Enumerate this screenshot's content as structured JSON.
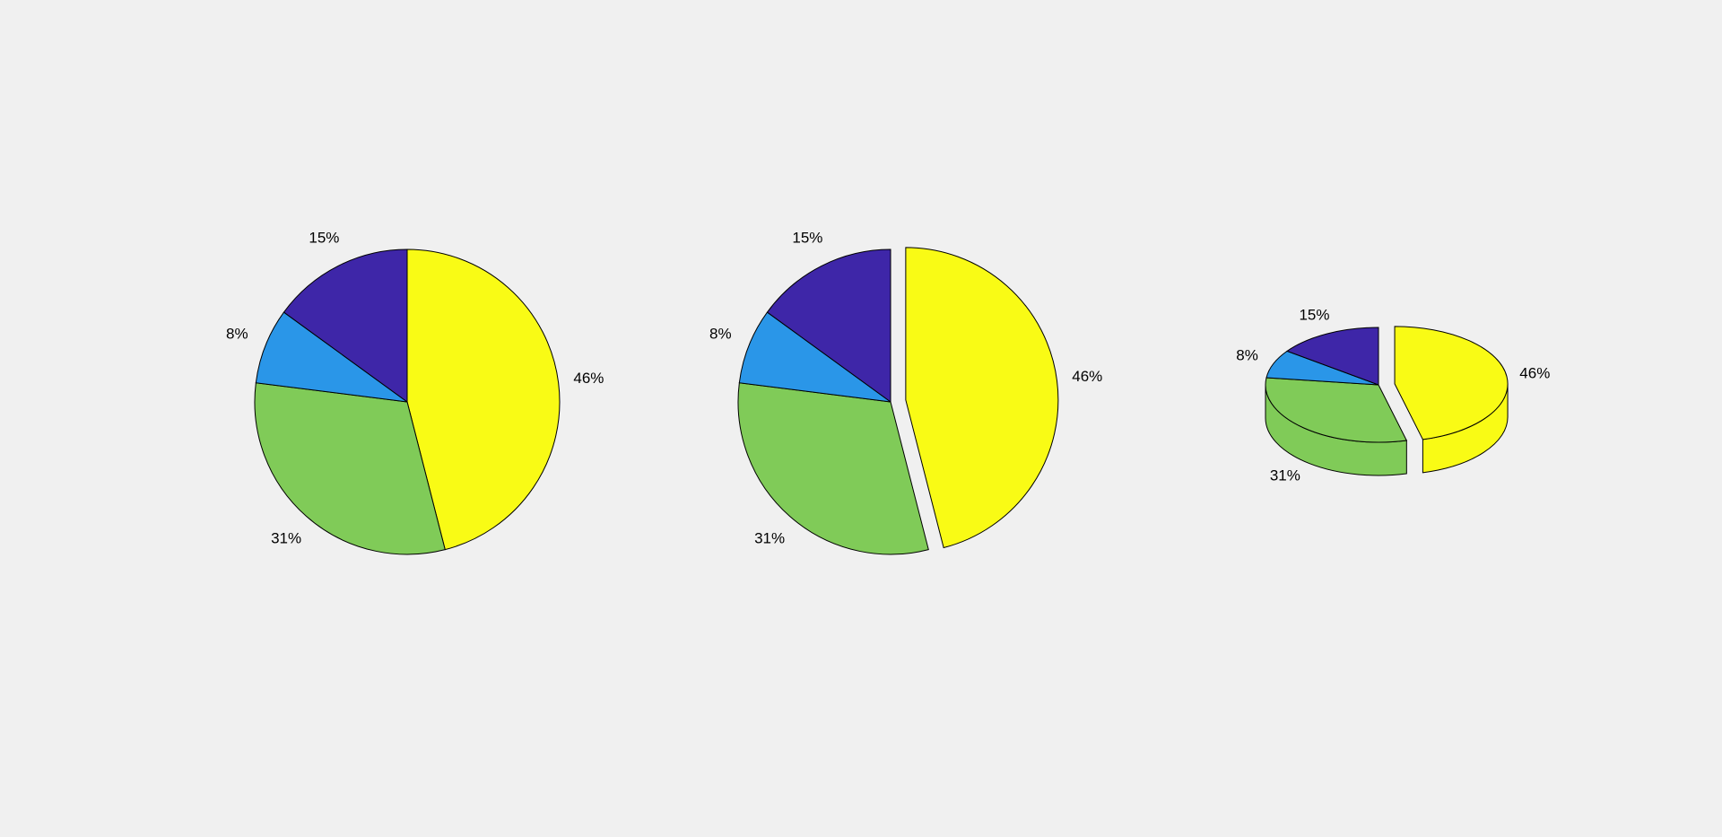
{
  "chart_data": [
    {
      "type": "pie",
      "values": [
        46,
        31,
        8,
        15
      ],
      "value_labels": [
        "46%",
        "31%",
        "8%",
        "15%"
      ],
      "colors": [
        "#f9fb15",
        "#80cb58",
        "#2a96e8",
        "#3e26a8"
      ]
    },
    {
      "type": "pie",
      "values": [
        46,
        31,
        8,
        15
      ],
      "value_labels": [
        "46%",
        "31%",
        "8%",
        "15%"
      ],
      "colors": [
        "#f9fb15",
        "#80cb58",
        "#2a96e8",
        "#3e26a8"
      ],
      "explode": [
        true,
        false,
        false,
        false
      ]
    },
    {
      "type": "pie3",
      "values": [
        46,
        31,
        8,
        15
      ],
      "value_labels": [
        "46%",
        "31%",
        "8%",
        "15%"
      ],
      "colors": [
        "#f9fb15",
        "#80cb58",
        "#2a96e8",
        "#3e26a8"
      ],
      "explode": [
        true,
        false,
        false,
        false
      ]
    }
  ]
}
